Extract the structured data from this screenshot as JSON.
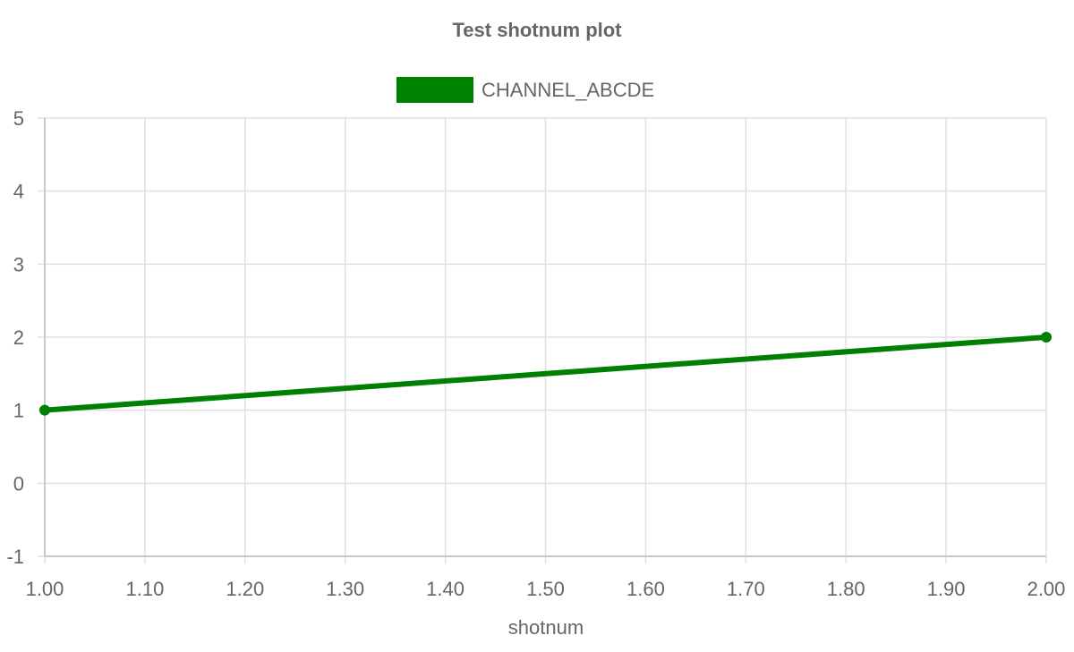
{
  "chart_data": {
    "type": "line",
    "title": "Test shotnum plot",
    "xlabel": "shotnum",
    "ylabel": "",
    "xlim": [
      1.0,
      2.0
    ],
    "ylim": [
      -1,
      5
    ],
    "x_ticks": [
      "1.00",
      "1.10",
      "1.20",
      "1.30",
      "1.40",
      "1.50",
      "1.60",
      "1.70",
      "1.80",
      "1.90",
      "2.00"
    ],
    "y_ticks": [
      "-1",
      "0",
      "1",
      "2",
      "3",
      "4",
      "5"
    ],
    "grid": true,
    "legend_position": "top",
    "series": [
      {
        "name": "CHANNEL_ABCDE",
        "color": "#008000",
        "x": [
          1.0,
          2.0
        ],
        "y": [
          1,
          2
        ]
      }
    ]
  },
  "colors": {
    "text": "#666666",
    "grid": "#e0e0e0",
    "axis": "#c8c8c8"
  }
}
